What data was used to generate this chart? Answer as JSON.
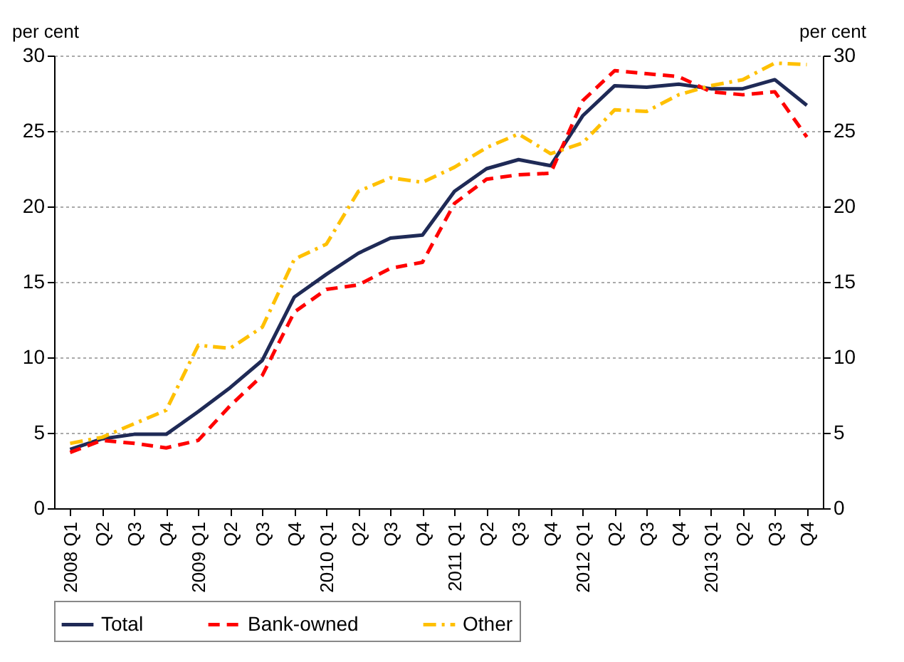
{
  "chart_data": {
    "type": "line",
    "ylabel": "per cent",
    "y2label": "per cent",
    "categories": [
      "2008 Q1",
      "Q2",
      "Q3",
      "Q4",
      "2009 Q1",
      "Q2",
      "Q3",
      "Q4",
      "2010 Q1",
      "Q2",
      "Q3",
      "Q4",
      "2011 Q1",
      "Q2",
      "Q3",
      "Q4",
      "2012 Q1",
      "Q2",
      "Q3",
      "Q4",
      "2013 Q1",
      "Q2",
      "Q3",
      "Q4"
    ],
    "series": [
      {
        "name": "Total",
        "color": "#1f2a56",
        "line_style": "solid",
        "values": [
          3.9,
          4.6,
          4.9,
          4.9,
          6.4,
          8.0,
          9.8,
          14.0,
          15.5,
          16.9,
          17.9,
          18.1,
          21.0,
          22.5,
          23.1,
          22.7,
          26.0,
          28.0,
          27.9,
          28.1,
          27.8,
          27.8,
          28.4,
          26.7
        ]
      },
      {
        "name": "Bank-owned",
        "color": "#ff0000",
        "line_style": "dashed",
        "values": [
          3.7,
          4.5,
          4.3,
          4.0,
          4.5,
          6.8,
          8.8,
          13.0,
          14.5,
          14.8,
          15.9,
          16.3,
          20.2,
          21.8,
          22.1,
          22.2,
          27.0,
          29.0,
          28.8,
          28.6,
          27.6,
          27.4,
          27.6,
          24.6
        ]
      },
      {
        "name": "Other",
        "color": "#ffc000",
        "line_style": "dashdot",
        "values": [
          4.3,
          4.7,
          5.6,
          6.5,
          10.8,
          10.6,
          12.0,
          16.5,
          17.5,
          21.0,
          21.9,
          21.6,
          22.6,
          23.9,
          24.8,
          23.5,
          24.2,
          26.4,
          26.3,
          27.4,
          28.0,
          28.4,
          29.5,
          29.4
        ]
      }
    ],
    "ylim": [
      0,
      30
    ],
    "yticks": [
      0,
      5,
      10,
      15,
      20,
      25,
      30
    ],
    "y2lim": [
      0,
      30
    ],
    "y2ticks": [
      0,
      5,
      10,
      15,
      20,
      25,
      30
    ],
    "grid": "y",
    "legend": "bottom"
  }
}
